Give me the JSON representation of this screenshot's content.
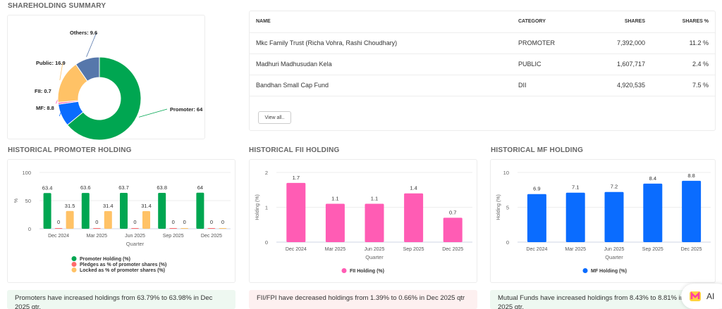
{
  "summary": {
    "title": "SHAREHOLDING SUMMARY",
    "chart_data": {
      "type": "pie",
      "donut": true,
      "slices": [
        {
          "label": "Promoter",
          "value": 64,
          "color": "#00a651"
        },
        {
          "label": "MF",
          "value": 8.8,
          "color": "#0a6cff"
        },
        {
          "label": "FII",
          "value": 0.7,
          "color": "#ff5cb4"
        },
        {
          "label": "Public",
          "value": 16.9,
          "color": "#ffc266"
        },
        {
          "label": "Others",
          "value": 9.6,
          "color": "#5677ab"
        }
      ],
      "labels": [
        "Promoter: 64",
        "MF: 8.8",
        "FII: 0.7",
        "Public: 16.9",
        "Others: 9.6"
      ]
    }
  },
  "table": {
    "headers": [
      "NAME",
      "CATEGORY",
      "SHARES",
      "SHARES %"
    ],
    "rows": [
      [
        "Mkc Family Trust (Richa Vohra, Rashi Choudhary)",
        "PROMOTER",
        "7,392,000",
        "11.2 %"
      ],
      [
        "Madhuri Madhusudan Kela",
        "PUBLIC",
        "1,607,717",
        "2.4 %"
      ],
      [
        "Bandhan Small Cap Fund",
        "DII",
        "4,920,535",
        "7.5 %"
      ]
    ],
    "view_all": "View all.."
  },
  "promoter": {
    "title": "HISTORICAL PROMOTER HOLDING",
    "chart_data": {
      "type": "bar",
      "categories": [
        "Dec 2024",
        "Mar 2025",
        "Jun 2025",
        "Sep 2025",
        "Dec 2025"
      ],
      "xlabel": "Quarter",
      "ylabel": "%",
      "ylim": [
        0,
        100
      ],
      "yticks": [
        0,
        50,
        100
      ],
      "grid": true,
      "legend": "bottom",
      "series": [
        {
          "name": "Promoter Holding (%)",
          "color": "#00a651",
          "values": [
            63.4,
            63.6,
            63.7,
            63.8,
            64
          ]
        },
        {
          "name": "Pledges as % of promoter shares (%)",
          "color": "#ff6b6b",
          "values": [
            0,
            0,
            0,
            0,
            0
          ]
        },
        {
          "name": "Locked as % of promoter shares (%)",
          "color": "#ffc266",
          "values": [
            31.5,
            31.4,
            31.4,
            0,
            0
          ]
        }
      ]
    },
    "note": "Promoters have increased holdings from 63.79% to 63.98% in Dec 2025 qtr."
  },
  "fii": {
    "title": "HISTORICAL FII HOLDING",
    "chart_data": {
      "type": "bar",
      "categories": [
        "Dec 2024",
        "Mar 2025",
        "Jun 2025",
        "Sep 2025",
        "Dec 2025"
      ],
      "xlabel": "Quarter",
      "ylabel": "Holding (%)",
      "ylim": [
        0,
        2
      ],
      "yticks": [
        0,
        1,
        2
      ],
      "grid": true,
      "legend": "bottom",
      "series": [
        {
          "name": "FII Holding (%)",
          "color": "#ff5cb4",
          "values": [
            1.7,
            1.1,
            1.1,
            1.4,
            0.7
          ]
        }
      ]
    },
    "note": "FII/FPI have decreased holdings from 1.39% to 0.66% in Dec 2025 qtr"
  },
  "mf": {
    "title": "HISTORICAL MF HOLDING",
    "chart_data": {
      "type": "bar",
      "categories": [
        "Dec 2024",
        "Mar 2025",
        "Jun 2025",
        "Sep 2025",
        "Dec 2025"
      ],
      "xlabel": "Quarter",
      "ylabel": "Holding (%)",
      "ylim": [
        0,
        10
      ],
      "yticks": [
        0,
        5,
        10
      ],
      "grid": true,
      "legend": "bottom",
      "series": [
        {
          "name": "MF Holding (%)",
          "color": "#0a6cff",
          "values": [
            6.9,
            7.1,
            7.2,
            8.4,
            8.8
          ]
        }
      ]
    },
    "note": "Mutual Funds have increased holdings from 8.43% to 8.81% in Dec 2025 qtr."
  },
  "ai_button": {
    "label": "AI"
  }
}
